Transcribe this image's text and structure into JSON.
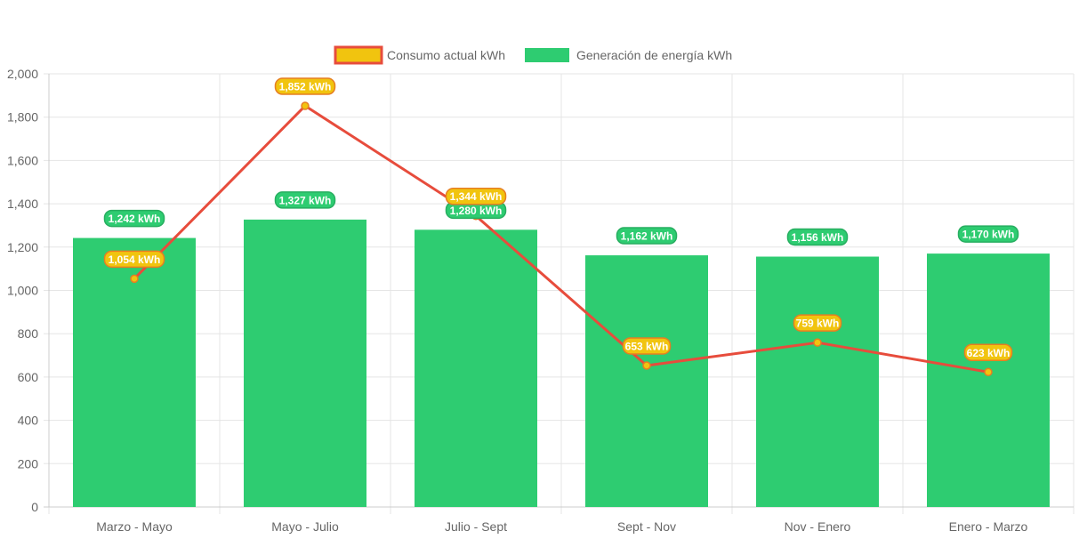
{
  "chart_data": {
    "type": "bar",
    "title": "",
    "xlabel": "",
    "ylabel": "",
    "categories": [
      "Marzo - Mayo",
      "Mayo - Julio",
      "Julio - Sept",
      "Sept - Nov",
      "Nov - Enero",
      "Enero - Marzo"
    ],
    "ylim": [
      0,
      2000
    ],
    "yticks": [
      0,
      200,
      400,
      600,
      800,
      1000,
      1200,
      1400,
      1600,
      1800,
      2000
    ],
    "ytick_labels": [
      "0",
      "200",
      "400",
      "600",
      "800",
      "1,000",
      "1,200",
      "1,400",
      "1,600",
      "1,800",
      "2,000"
    ],
    "grid": true,
    "legend_position": "top",
    "series": [
      {
        "name": "Consumo actual kWh",
        "type": "line",
        "color": "#e74c3c",
        "point_color": "#f1c40f",
        "badge_color": "#f1c40f",
        "badge_border": "#e67e22",
        "values": [
          1054,
          1852,
          1344,
          653,
          759,
          623
        ],
        "labels": [
          "1,054 kWh",
          "1,852 kWh",
          "1,344 kWh",
          "653 kWh",
          "759 kWh",
          "623 kWh"
        ]
      },
      {
        "name": "Generación de energía kWh",
        "type": "bar",
        "color": "#2ecc71",
        "badge_color": "#2ecc71",
        "badge_border": "#27ae60",
        "values": [
          1242,
          1327,
          1280,
          1162,
          1156,
          1170
        ],
        "labels": [
          "1,242 kWh",
          "1,327 kWh",
          "1,280 kWh",
          "1,162 kWh",
          "1,156 kWh",
          "1,170 kWh"
        ]
      }
    ]
  },
  "legend": {
    "line_label": "Consumo actual kWh",
    "bar_label": "Generación de energía kWh",
    "line_swatch_fill": "#f1c40f",
    "line_swatch_border": "#e74c3c",
    "bar_swatch_fill": "#2ecc71"
  }
}
